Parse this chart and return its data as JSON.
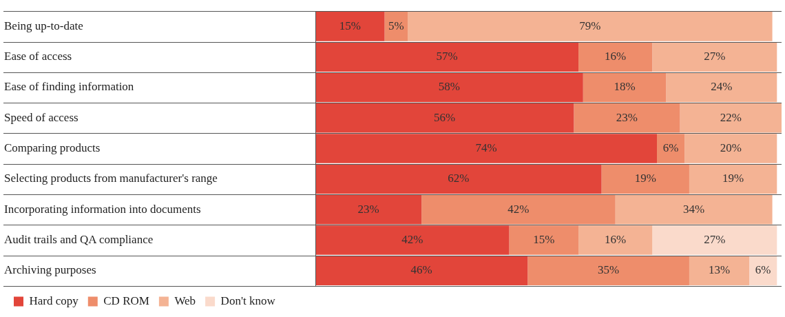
{
  "chart_data": {
    "type": "bar",
    "orientation": "horizontal",
    "stacked": true,
    "categories": [
      "Being up-to-date",
      "Ease of access",
      "Ease of finding information",
      "Speed of access",
      "Comparing products",
      "Selecting products from manufacturer's range",
      "Incorporating information into documents",
      "Audit trails and QA compliance",
      "Archiving purposes"
    ],
    "series": [
      {
        "name": "Hard copy",
        "color": "#e2453a",
        "values": [
          15,
          57,
          58,
          56,
          74,
          62,
          23,
          42,
          46
        ],
        "value_labels": [
          "15%",
          "57%",
          "58%",
          "56%",
          "74%",
          "62%",
          "23%",
          "42%",
          "46%"
        ]
      },
      {
        "name": "CD ROM",
        "color": "#ee8d6b",
        "values": [
          5,
          16,
          18,
          23,
          6,
          19,
          42,
          15,
          35
        ],
        "value_labels": [
          "5%",
          "16%",
          "18%",
          "23%",
          "6%",
          "19%",
          "42%",
          "15%",
          "35%"
        ]
      },
      {
        "name": "Web",
        "color": "#f4b394",
        "values": [
          79,
          27,
          24,
          22,
          20,
          19,
          34,
          16,
          13
        ],
        "value_labels": [
          "79%",
          "27%",
          "24%",
          "22%",
          "20%",
          "19%",
          "34%",
          "16%",
          "13%"
        ]
      },
      {
        "name": "Don't know",
        "color": "#fadacb",
        "values": [
          null,
          null,
          null,
          null,
          null,
          null,
          null,
          27,
          6
        ],
        "value_labels": [
          null,
          null,
          null,
          null,
          null,
          null,
          null,
          "27%",
          "6%"
        ]
      }
    ],
    "xlim": [
      0,
      101
    ],
    "tick_labels": "y",
    "grid": "y",
    "legend": "bottom left"
  }
}
